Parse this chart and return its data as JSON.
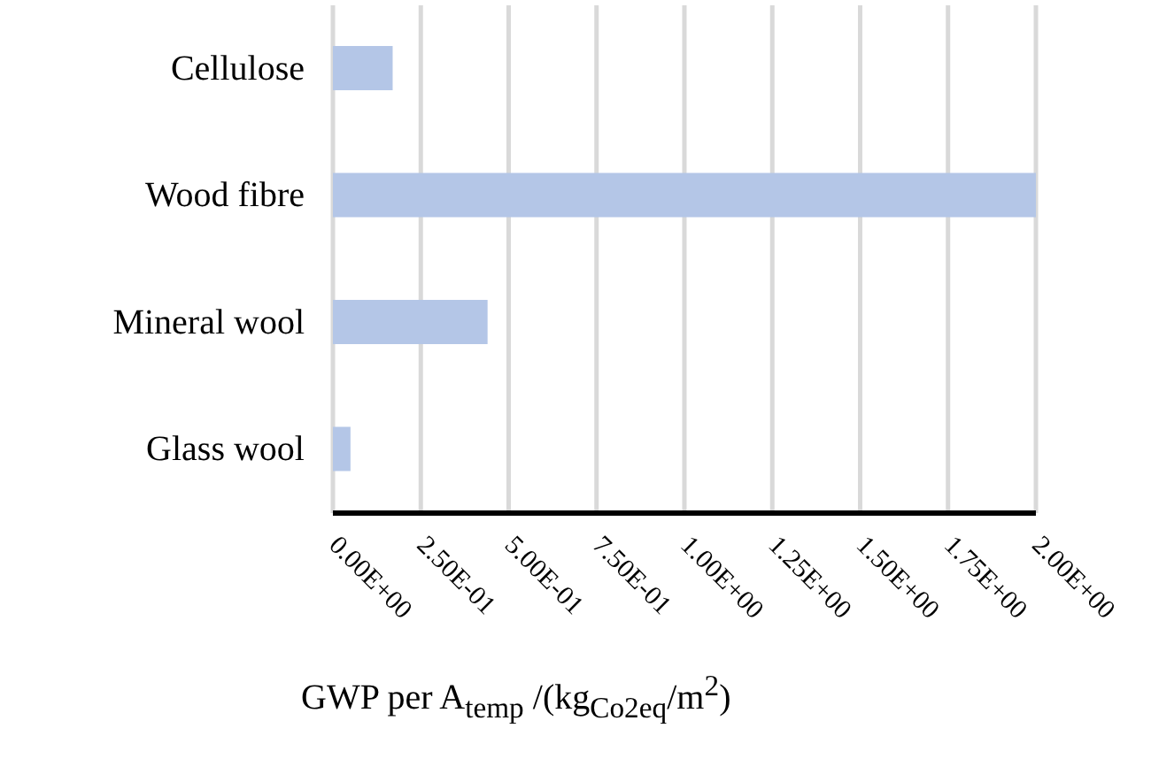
{
  "chart_data": {
    "type": "bar",
    "orientation": "horizontal",
    "categories": [
      "Cellulose",
      "Wood fibre",
      "Mineral wool",
      "Glass wool"
    ],
    "values": [
      0.17,
      2.0,
      0.44,
      0.05
    ],
    "color": "#b4c6e7",
    "xlabel": "GWP per A$_{temp}$ /(kg$_{Co2eq}$/m$^{2}$)",
    "xlim": [
      0,
      2.0
    ],
    "xticks": [
      {
        "value": 0,
        "label": "0.00E+00"
      },
      {
        "value": 0.25,
        "label": "2.50E-01"
      },
      {
        "value": 0.5,
        "label": "5.00E-01"
      },
      {
        "value": 0.75,
        "label": "7.50E-01"
      },
      {
        "value": 1.0,
        "label": "1.00E+00"
      },
      {
        "value": 1.25,
        "label": "1.25E+00"
      },
      {
        "value": 1.5,
        "label": "1.50E+00"
      },
      {
        "value": 1.75,
        "label": "1.75E+00"
      },
      {
        "value": 2.0,
        "label": "2.00E+00"
      }
    ],
    "grid": "x",
    "legend": false
  }
}
